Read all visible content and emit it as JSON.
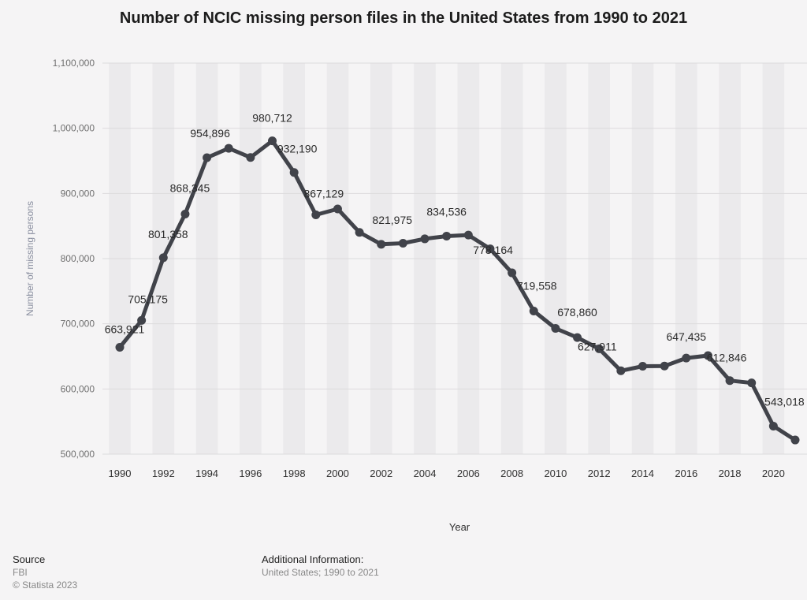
{
  "chart_data": {
    "type": "line",
    "title": "Number of NCIC missing person files in the United States from 1990 to 2021",
    "xlabel": "Year",
    "ylabel": "Number of missing persons",
    "x": [
      1990,
      1991,
      1992,
      1993,
      1994,
      1995,
      1996,
      1997,
      1998,
      1999,
      2000,
      2001,
      2002,
      2003,
      2004,
      2005,
      2006,
      2007,
      2008,
      2009,
      2010,
      2011,
      2012,
      2013,
      2014,
      2015,
      2016,
      2017,
      2018,
      2019,
      2020,
      2021
    ],
    "values": [
      663921,
      705175,
      801358,
      868345,
      954896,
      969264,
      955203,
      980712,
      932190,
      867129,
      876213,
      840279,
      821975,
      823532,
      830325,
      834536,
      836131,
      814957,
      778164,
      719558,
      692944,
      678860,
      661593,
      627911,
      634908,
      635155,
      647435,
      651226,
      612846,
      609275,
      543018,
      521705
    ],
    "data_labels": {
      "1990": "663,921",
      "1991": "705,175",
      "1992": "801,358",
      "1993": "868,345",
      "1994": "954,896",
      "1997": "980,712",
      "1998": "932,190",
      "1999": "867,129",
      "2002": "821,975",
      "2005": "834,536",
      "2008": "778,164",
      "2009": "719,558",
      "2011": "678,860",
      "2013": "627,911",
      "2016": "647,435",
      "2018": "612,846",
      "2020": "543,018"
    },
    "x_ticks": [
      "1990",
      "1992",
      "1994",
      "1996",
      "1998",
      "2000",
      "2002",
      "2004",
      "2006",
      "2008",
      "2010",
      "2012",
      "2014",
      "2016",
      "2018",
      "2020"
    ],
    "y_ticks": [
      "500,000",
      "600,000",
      "700,000",
      "800,000",
      "900,000",
      "1,000,000",
      "1,100,000"
    ],
    "ylim": [
      500000,
      1100000
    ],
    "xlim": [
      1990,
      2021
    ],
    "grid": true,
    "line_color": "#41434a"
  },
  "footer": {
    "source_label": "Source",
    "source_value": "FBI",
    "copyright": "© Statista 2023",
    "additional_label": "Additional Information:",
    "additional_value": "United States; 1990 to 2021"
  }
}
